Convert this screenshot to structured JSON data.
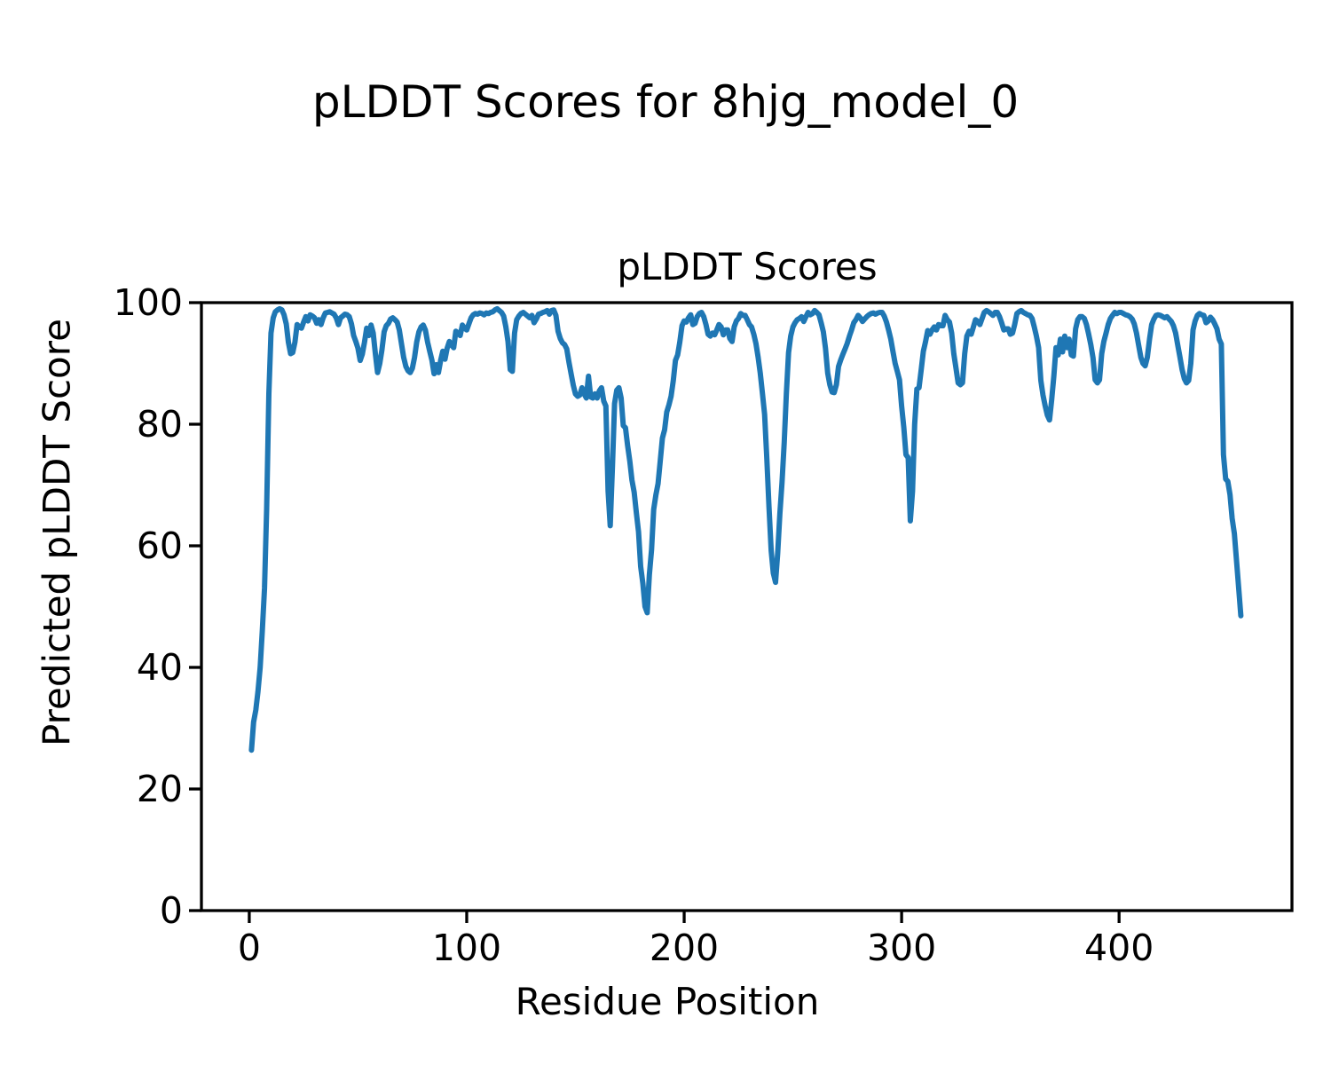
{
  "figure": {
    "suptitle": "pLDDT Scores for 8hjg_model_0"
  },
  "chart_data": {
    "type": "line",
    "title": "pLDDT Scores",
    "xlabel": "Residue Position",
    "ylabel": "Predicted pLDDT Score",
    "x_ticks": [
      0,
      100,
      200,
      300,
      400
    ],
    "y_ticks": [
      0,
      20,
      40,
      60,
      80,
      100
    ],
    "xlim": [
      -22,
      479.5
    ],
    "ylim": [
      0,
      100
    ],
    "grid": false,
    "legend_position": "none",
    "line_color": "#1f77b4",
    "axis_color": "#000000",
    "series": [
      {
        "name": "pLDDT",
        "x_start": 1,
        "x_step": 1,
        "values": [
          26.4,
          31,
          33,
          36,
          40,
          46,
          53,
          66,
          85,
          95,
          97.5,
          98.5,
          98.8,
          99,
          98.8,
          98,
          96.5,
          93.5,
          91.6,
          91.8,
          93.5,
          96.4,
          96,
          95.8,
          96.8,
          97.7,
          97,
          98,
          97.8,
          97.5,
          96.6,
          97.2,
          96.4,
          97.5,
          98.3,
          98.4,
          98.5,
          98.3,
          98.1,
          97.5,
          96.4,
          97.5,
          97.8,
          98.1,
          98,
          97.7,
          96.5,
          94.6,
          93.6,
          92.5,
          90.5,
          91.5,
          93.5,
          95.8,
          94.6,
          96.3,
          95,
          91.5,
          88.5,
          90,
          92.2,
          95.2,
          96.2,
          96.6,
          97.3,
          97.5,
          97.2,
          96.8,
          95.5,
          93.2,
          91,
          89.5,
          88.8,
          88.5,
          89.2,
          91,
          93.5,
          95.2,
          96,
          96.3,
          95.5,
          93.5,
          92,
          90.5,
          88.3,
          89.8,
          88.5,
          90.5,
          92,
          90.7,
          92.5,
          93.6,
          93,
          92.6,
          95.3,
          95,
          94.6,
          96.3,
          95.8,
          95.5,
          96.5,
          97.5,
          98,
          98.2,
          98.1,
          98.3,
          98.2,
          98,
          98.3,
          98.2,
          98.4,
          98.5,
          98.8,
          99,
          98.7,
          98.4,
          97.8,
          96,
          93.6,
          89,
          88.7,
          95,
          97.2,
          97.8,
          98.2,
          98.4,
          98.1,
          97.8,
          97.5,
          97.9,
          96.7,
          97.3,
          98.1,
          98.2,
          98.4,
          98.5,
          98.7,
          98.1,
          98.7,
          98.8,
          97.9,
          95.3,
          94.1,
          93.4,
          93.1,
          92.4,
          90.2,
          88.3,
          86.4,
          85,
          84.6,
          84.8,
          86,
          85,
          84.3,
          87.9,
          84.5,
          84.3,
          85,
          84.3,
          85.5,
          86,
          83.8,
          83,
          69,
          63.3,
          73,
          83.4,
          85.6,
          86,
          84.3,
          79.8,
          79.4,
          76.5,
          73.9,
          70.8,
          68.8,
          65.5,
          62.3,
          56.6,
          53.8,
          50,
          49,
          55.2,
          59.4,
          66,
          68.4,
          70.2,
          74,
          77.7,
          79.1,
          82,
          83.2,
          84.6,
          87.2,
          90.5,
          91.4,
          93.5,
          96.2,
          97,
          96.8,
          97.5,
          98,
          96.4,
          96.6,
          97.7,
          98.2,
          98.4,
          97.7,
          96.4,
          94.8,
          94.5,
          95,
          94.7,
          95.5,
          96.4,
          96,
          94.7,
          95.5,
          95.5,
          94.1,
          93.6,
          96,
          97,
          97.4,
          98.2,
          97.9,
          97.9,
          97.2,
          96.4,
          96,
          94.8,
          93.3,
          91,
          88.4,
          85,
          81.6,
          74.3,
          66.5,
          59.2,
          55.5,
          54,
          58.7,
          65.3,
          70.4,
          77,
          85,
          91.8,
          94.5,
          96,
          96.7,
          97.2,
          97.4,
          97.7,
          96.9,
          97.7,
          98.4,
          98,
          98.2,
          98.7,
          98.4,
          98,
          96.7,
          95.2,
          92.5,
          88.4,
          86.5,
          85.3,
          85.2,
          86.5,
          89.5,
          90.6,
          91.5,
          92.4,
          93.3,
          94.5,
          95.5,
          96.7,
          97.2,
          97.9,
          97.5,
          96.9,
          97.3,
          97.7,
          98,
          98.2,
          98.3,
          98.1,
          98.3,
          98.4,
          98.4,
          97.8,
          96.8,
          95.5,
          94,
          92,
          90,
          88.7,
          87.3,
          83,
          79.4,
          75,
          74.5,
          64.1,
          69,
          80,
          85.8,
          86,
          89,
          92,
          93.6,
          95.4,
          94.8,
          95.5,
          96,
          95.5,
          96.4,
          96.2,
          96.2,
          97.9,
          97.2,
          96.8,
          95,
          91.6,
          89.2,
          86.8,
          86.5,
          86.8,
          91.6,
          94.5,
          95.3,
          94.8,
          96,
          97.2,
          96.9,
          96.4,
          97.4,
          98.4,
          98.7,
          98.5,
          98.2,
          97.9,
          98.4,
          98.4,
          97.7,
          96.7,
          95.5,
          95.7,
          95.7,
          94.8,
          95,
          96.4,
          98.2,
          98.5,
          98.7,
          98.4,
          98.2,
          98,
          97.9,
          97.4,
          96,
          94.5,
          92.6,
          87.2,
          84.8,
          83,
          81.5,
          80.7,
          84,
          88,
          92.6,
          91.4,
          94,
          91.9,
          94.5,
          92.6,
          94,
          91.4,
          91.2,
          95.7,
          97.2,
          97.7,
          97.7,
          97.4,
          96.4,
          94.8,
          93.1,
          90.9,
          87.3,
          86.8,
          87.3,
          91.6,
          93.6,
          95,
          96.4,
          97.4,
          97.9,
          98.4,
          98.2,
          98.4,
          98.4,
          98.2,
          98,
          97.9,
          97.7,
          97.3,
          96.5,
          95,
          93,
          91,
          90,
          89.6,
          91,
          94,
          96.4,
          97.3,
          97.9,
          98,
          97.9,
          97.7,
          97.5,
          97.7,
          97.3,
          96.9,
          96.2,
          95,
          93,
          91,
          89,
          87.5,
          86.8,
          87.2,
          90,
          95.5,
          97,
          97.9,
          98.2,
          98,
          97.9,
          96.7,
          97,
          97.6,
          97.2,
          96.5,
          95.7,
          94,
          93.2,
          75,
          71,
          70.6,
          68.4,
          64.5,
          62,
          57.6,
          53,
          48.5
        ]
      }
    ]
  }
}
